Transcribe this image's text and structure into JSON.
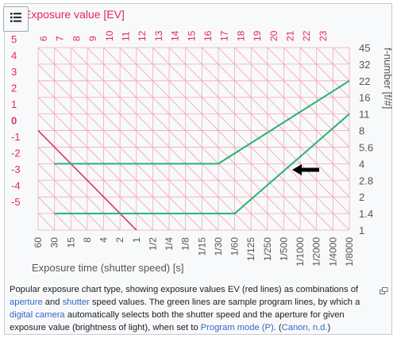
{
  "toolbar": {
    "toc_icon": "list-icon"
  },
  "chart_data": {
    "type": "line",
    "title": "Exposure value [EV]",
    "xlabel": "Exposure time (shutter speed) [s]",
    "ylabel_right": "f-number [f/#]",
    "x_ticks": [
      "60",
      "30",
      "15",
      "8",
      "4",
      "2",
      "1",
      "1/2",
      "1/4",
      "1/8",
      "1/15",
      "1/30",
      "1/60",
      "1/125",
      "1/250",
      "1/500",
      "1/1000",
      "1/2000",
      "1/4000",
      "1/8000"
    ],
    "fnumber_ticks": [
      "1",
      "1.4",
      "2",
      "2.8",
      "4",
      "5.6",
      "8",
      "11",
      "16",
      "22",
      "32",
      "45"
    ],
    "ev_left_labels": [
      "5",
      "4",
      "3",
      "2",
      "1",
      "0",
      "-1",
      "-2",
      "-3",
      "-4",
      "-5"
    ],
    "ev_top_labels": [
      "6",
      "7",
      "8",
      "9",
      "10",
      "11",
      "12",
      "13",
      "14",
      "15",
      "16",
      "17",
      "18",
      "19",
      "20",
      "21",
      "22",
      "23"
    ],
    "series": [
      {
        "points": [
          {
            "x": "30",
            "f": "4"
          },
          {
            "x": "1/30",
            "f": "4"
          },
          {
            "x": "1/8000",
            "f": "22"
          }
        ]
      },
      {
        "points": [
          {
            "x": "30",
            "f": "1.4"
          },
          {
            "x": "1/60",
            "f": "1.4"
          },
          {
            "x": "1/8000",
            "f": "11"
          }
        ]
      }
    ],
    "colors": {
      "ev_lines": "#f3a9b6",
      "ev_zero_line": "#d6336c",
      "ev_labels": "#e8245e",
      "program_lines": "#22b573",
      "axis_text": "#555555",
      "arrow": "#000000"
    }
  },
  "caption": {
    "t1": "Popular exposure chart type, showing exposure values EV (red lines) as combinations of ",
    "link_aperture": "aperture",
    "t2": " and ",
    "link_shutter": "shutter",
    "t3": " speed values. The green lines are sample program lines, by which a ",
    "link_camera": "digital camera",
    "t4": " automatically selects both the shutter speed and the aperture for given exposure value (brightness of light), when set to ",
    "link_program": "Program mode (P)",
    "t5": ". (",
    "link_source": "Canon, n.d.",
    "t6": ")"
  }
}
